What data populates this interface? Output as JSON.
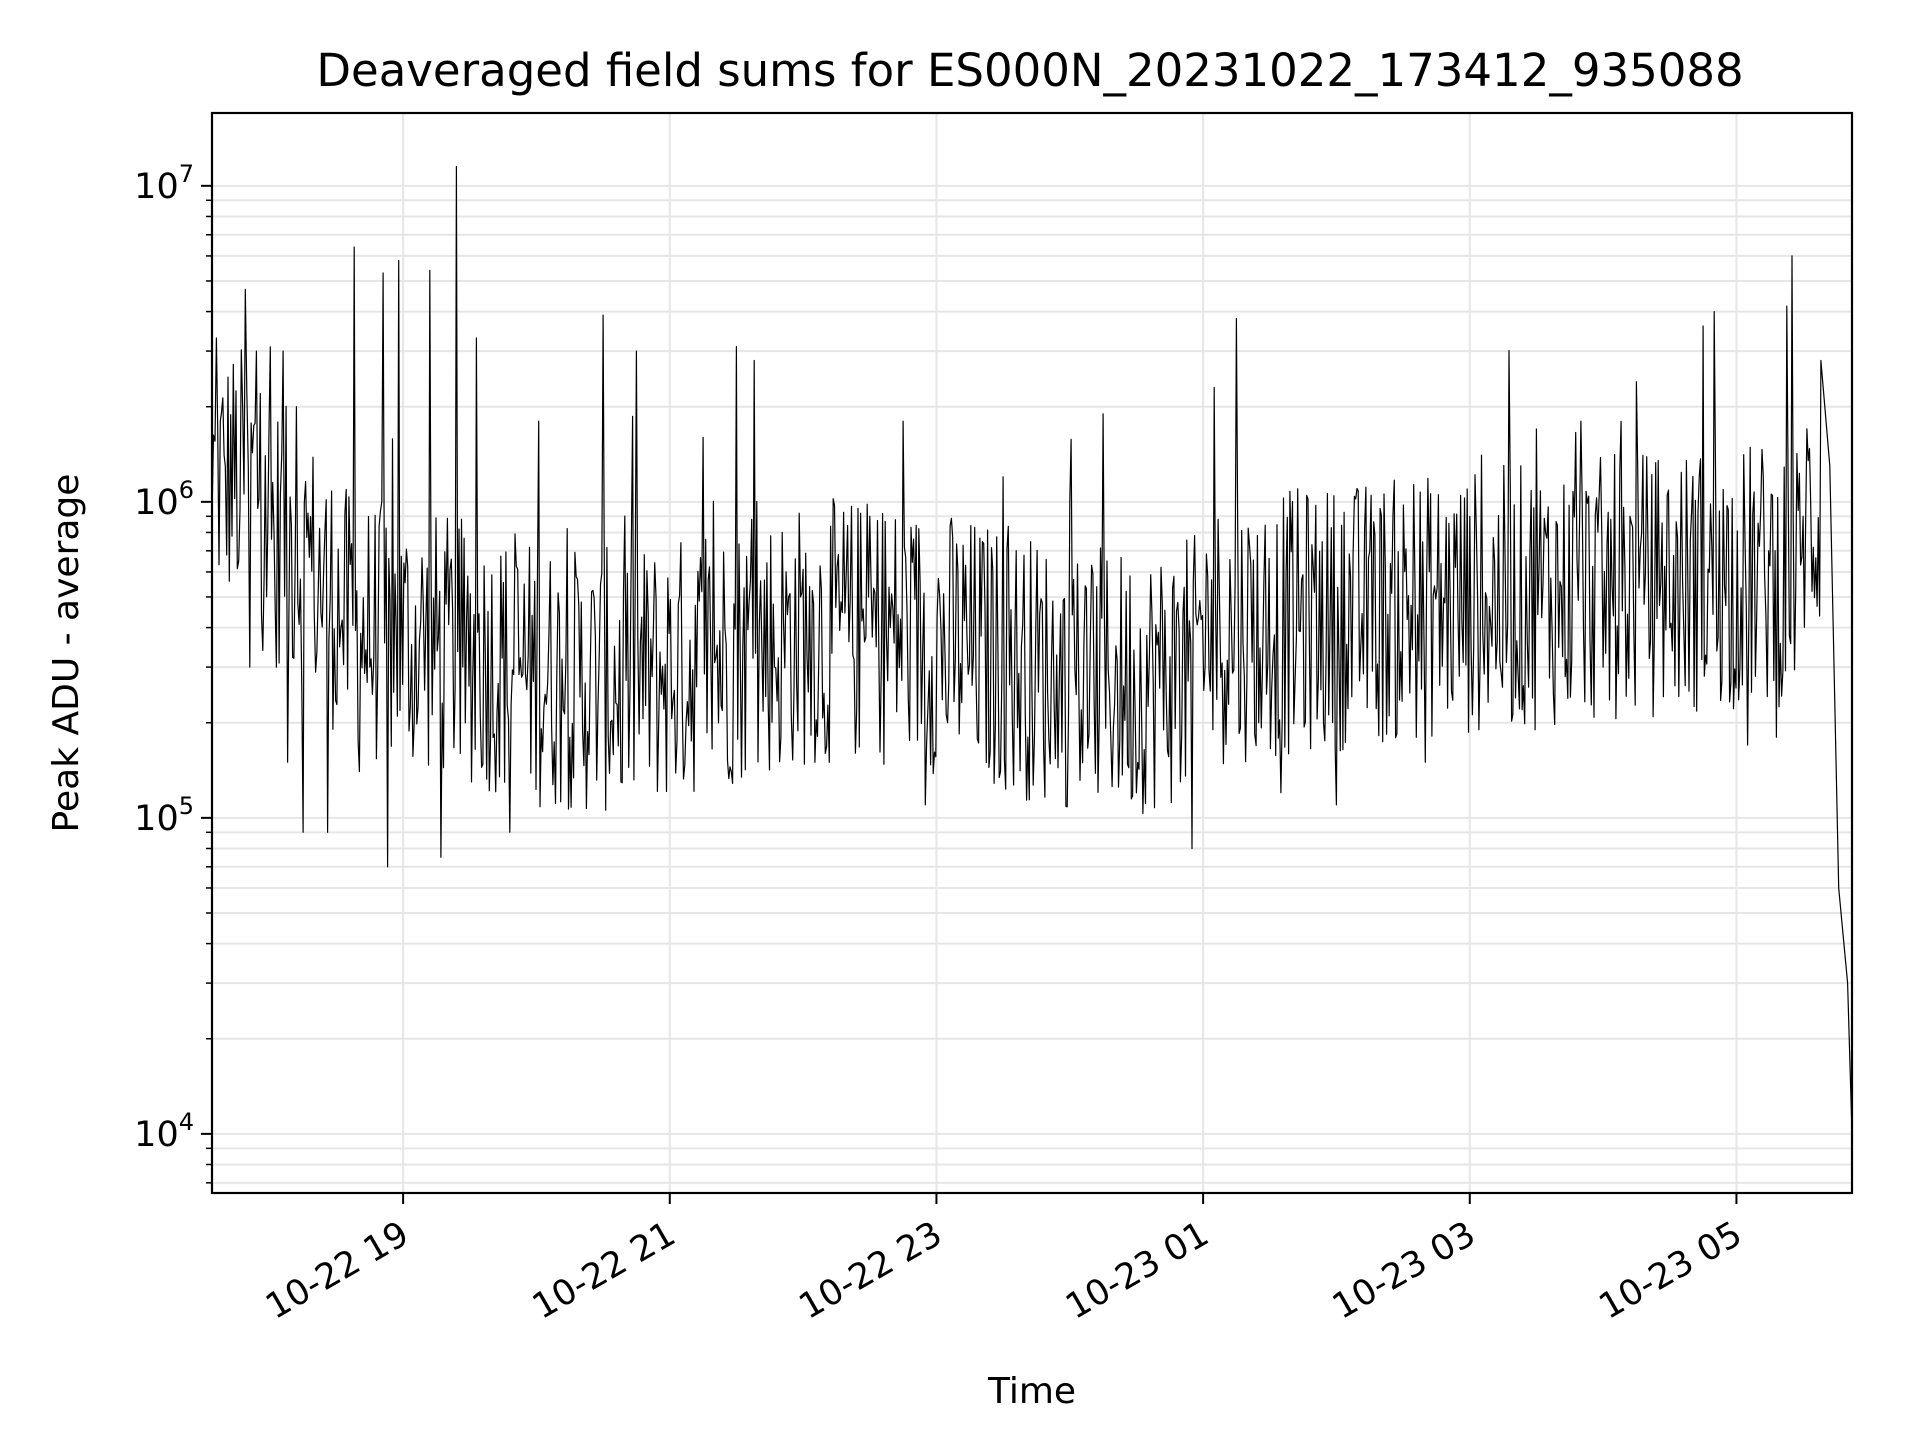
{
  "chart_data": {
    "type": "line",
    "title": "Deaveraged field sums for ES000N_20231022_173412_935088",
    "xlabel": "Time",
    "ylabel": "Peak ADU - average",
    "yscale": "log",
    "ylim": [
      6500,
      17000000
    ],
    "xlim": [
      "2023-10-22 17:34",
      "2023-10-23 05:52"
    ],
    "grid": true,
    "line_color": "#000000",
    "grid_color": "#e6e6e6",
    "y_ticks": [
      {
        "value": 10000,
        "base": "10",
        "exp": "4"
      },
      {
        "value": 100000,
        "base": "10",
        "exp": "5"
      },
      {
        "value": 1000000,
        "base": "10",
        "exp": "6"
      },
      {
        "value": 10000000,
        "base": "10",
        "exp": "7"
      }
    ],
    "x_ticks": [
      {
        "time": "2023-10-22 19:00",
        "label": "10-22 19"
      },
      {
        "time": "2023-10-22 21:00",
        "label": "10-22 21"
      },
      {
        "time": "2023-10-22 23:00",
        "label": "10-22 23"
      },
      {
        "time": "2023-10-23 01:00",
        "label": "10-23 01"
      },
      {
        "time": "2023-10-23 03:00",
        "label": "10-23 03"
      },
      {
        "time": "2023-10-23 05:00",
        "label": "10-23 05"
      }
    ],
    "series": [
      {
        "x_start": "2023-10-22 17:34",
        "x_end": "2023-10-23 05:52",
        "points": [
          [
            "2023-10-22 17:34",
            900000
          ],
          [
            "2023-10-22 17:36",
            3300000
          ],
          [
            "2023-10-22 17:40",
            1300000
          ],
          [
            "2023-10-22 17:46",
            650000
          ],
          [
            "2023-10-22 17:49",
            4700000
          ],
          [
            "2023-10-22 17:51",
            300000
          ],
          [
            "2023-10-22 17:54",
            3000000
          ],
          [
            "2023-10-22 17:58",
            1400000
          ],
          [
            "2023-10-22 18:03",
            300000
          ],
          [
            "2023-10-22 18:06",
            3000000
          ],
          [
            "2023-10-22 18:08",
            150000
          ],
          [
            "2023-10-22 18:12",
            2000000
          ],
          [
            "2023-10-22 18:15",
            90000
          ],
          [
            "2023-10-22 18:20",
            450000
          ],
          [
            "2023-10-22 18:26",
            90000
          ],
          [
            "2023-10-22 18:32",
            400000
          ],
          [
            "2023-10-22 18:38",
            6400000
          ],
          [
            "2023-10-22 18:45",
            300000
          ],
          [
            "2023-10-22 18:51",
            5300000
          ],
          [
            "2023-10-22 18:53",
            70000
          ],
          [
            "2023-10-22 18:58",
            5800000
          ],
          [
            "2023-10-22 19:05",
            200000
          ],
          [
            "2023-10-22 19:12",
            5400000
          ],
          [
            "2023-10-22 19:17",
            75000
          ],
          [
            "2023-10-22 19:24",
            11500000
          ],
          [
            "2023-10-22 19:28",
            200000
          ],
          [
            "2023-10-22 19:33",
            3300000
          ],
          [
            "2023-10-22 19:48",
            90000
          ],
          [
            "2023-10-22 20:01",
            1800000
          ],
          [
            "2023-10-22 20:15",
            180000
          ],
          [
            "2023-10-22 20:30",
            3900000
          ],
          [
            "2023-10-22 20:38",
            130000
          ],
          [
            "2023-10-22 20:45",
            3000000
          ],
          [
            "2023-10-22 20:55",
            200000
          ],
          [
            "2023-10-22 21:15",
            1600000
          ],
          [
            "2023-10-22 21:30",
            3100000
          ],
          [
            "2023-10-22 21:38",
            2800000
          ],
          [
            "2023-10-22 21:50",
            180000
          ],
          [
            "2023-10-22 22:10",
            160000
          ],
          [
            "2023-10-22 22:30",
            900000
          ],
          [
            "2023-10-22 22:45",
            1800000
          ],
          [
            "2023-10-22 22:55",
            110000
          ],
          [
            "2023-10-22 23:05",
            200000
          ],
          [
            "2023-10-22 23:30",
            1200000
          ],
          [
            "2023-10-22 23:50",
            250000
          ],
          [
            "2023-10-23 00:00",
            1000000
          ],
          [
            "2023-10-23 00:15",
            1900000
          ],
          [
            "2023-10-23 00:30",
            120000
          ],
          [
            "2023-10-23 00:55",
            80000
          ],
          [
            "2023-10-23 01:05",
            2300000
          ],
          [
            "2023-10-23 01:15",
            3800000
          ],
          [
            "2023-10-23 01:25",
            200000
          ],
          [
            "2023-10-23 01:35",
            120000
          ],
          [
            "2023-10-23 02:00",
            110000
          ],
          [
            "2023-10-23 02:15",
            700000
          ],
          [
            "2023-10-23 02:40",
            150000
          ],
          [
            "2023-10-23 03:00",
            900000
          ],
          [
            "2023-10-23 03:30",
            1700000
          ],
          [
            "2023-10-23 03:50",
            1800000
          ],
          [
            "2023-10-23 04:00",
            300000
          ],
          [
            "2023-10-23 04:15",
            2400000
          ],
          [
            "2023-10-23 04:30",
            400000
          ],
          [
            "2023-10-23 04:45",
            3600000
          ],
          [
            "2023-10-23 04:50",
            4000000
          ],
          [
            "2023-10-23 05:05",
            170000
          ],
          [
            "2023-10-23 05:18",
            180000
          ],
          [
            "2023-10-23 05:25",
            6000000
          ],
          [
            "2023-10-23 05:30",
            900000
          ],
          [
            "2023-10-23 05:38",
            2800000
          ],
          [
            "2023-10-23 05:42",
            1300000
          ],
          [
            "2023-10-23 05:46",
            60000
          ],
          [
            "2023-10-23 05:50",
            30000
          ],
          [
            "2023-10-23 05:52",
            10000
          ]
        ]
      }
    ]
  }
}
